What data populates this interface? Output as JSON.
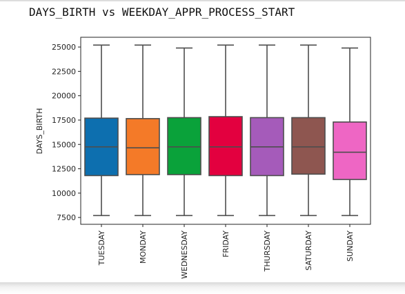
{
  "page": {
    "title": "DAYS_BIRTH vs WEEKDAY_APPR_PROCESS_START"
  },
  "chart_data": {
    "type": "boxplot",
    "title": "DAYS_BIRTH vs WEEKDAY_APPR_PROCESS_START",
    "xlabel": "",
    "ylabel": "DAYS_BIRTH",
    "ylim": [
      6800,
      26000
    ],
    "yticks": [
      7500,
      10000,
      12500,
      15000,
      17500,
      20000,
      22500,
      25000
    ],
    "grid": false,
    "categories": [
      "TUESDAY",
      "MONDAY",
      "WEDNESDAY",
      "FRIDAY",
      "THURSDAY",
      "SATURDAY",
      "SUNDAY"
    ],
    "boxes": [
      {
        "category": "TUESDAY",
        "whisker_low": 7700,
        "q1": 11800,
        "median": 14750,
        "q3": 17700,
        "whisker_high": 25200,
        "color": "#0D6FAF"
      },
      {
        "category": "MONDAY",
        "whisker_low": 7700,
        "q1": 11900,
        "median": 14650,
        "q3": 17650,
        "whisker_high": 25200,
        "color": "#F47A28"
      },
      {
        "category": "WEDNESDAY",
        "whisker_low": 7700,
        "q1": 11900,
        "median": 14750,
        "q3": 17750,
        "whisker_high": 24900,
        "color": "#0AA23A"
      },
      {
        "category": "FRIDAY",
        "whisker_low": 7700,
        "q1": 11800,
        "median": 14750,
        "q3": 17850,
        "whisker_high": 25200,
        "color": "#E3003F"
      },
      {
        "category": "THURSDAY",
        "whisker_low": 7700,
        "q1": 11800,
        "median": 14750,
        "q3": 17750,
        "whisker_high": 25200,
        "color": "#A55BBA"
      },
      {
        "category": "SATURDAY",
        "whisker_low": 7700,
        "q1": 11950,
        "median": 14750,
        "q3": 17750,
        "whisker_high": 25200,
        "color": "#8E5650"
      },
      {
        "category": "SUNDAY",
        "whisker_low": 7700,
        "q1": 11400,
        "median": 14200,
        "q3": 17300,
        "whisker_high": 24900,
        "color": "#EE66C4"
      }
    ]
  }
}
